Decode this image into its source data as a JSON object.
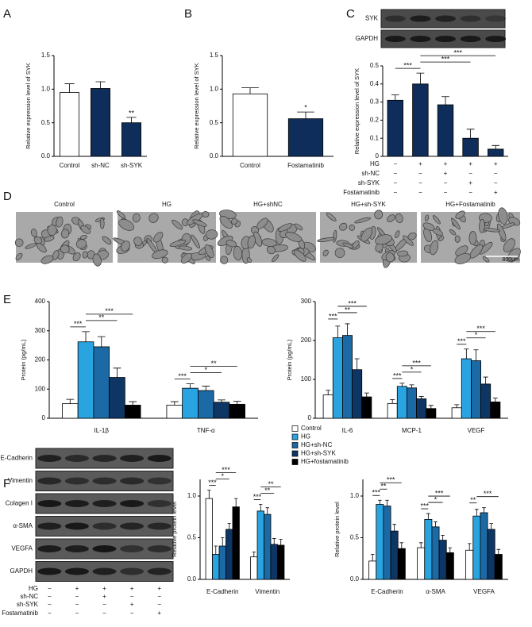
{
  "panels": [
    "A",
    "B",
    "C",
    "D",
    "E",
    "F"
  ],
  "blot_c": {
    "labels": [
      "SYK",
      "GAPDH"
    ]
  },
  "conditions_c": [
    {
      "label": "HG",
      "signs": [
        "−",
        "+",
        "+",
        "+",
        "+"
      ]
    },
    {
      "label": "sh-NC",
      "signs": [
        "−",
        "−",
        "+",
        "−",
        "−"
      ]
    },
    {
      "label": "sh-SYK",
      "signs": [
        "−",
        "−",
        "−",
        "+",
        "−"
      ]
    },
    {
      "label": "Fostamatinib",
      "signs": [
        "−",
        "−",
        "−",
        "−",
        "+"
      ]
    }
  ],
  "micrographs": {
    "labels": [
      "Control",
      "HG",
      "HG+shNC",
      "HG+sh-SYK",
      "HG+Fostamatinib"
    ],
    "scale": "800μm"
  },
  "blot_f": {
    "labels": [
      "E-Cadherin",
      "Vimentin",
      "Colagen I",
      "α-SMA",
      "VEGFA",
      "GAPDH"
    ]
  },
  "conditions_f": [
    {
      "label": "HG",
      "signs": [
        "−",
        "+",
        "+",
        "+",
        "+"
      ]
    },
    {
      "label": "sh-NC",
      "signs": [
        "−",
        "−",
        "+",
        "−",
        "−"
      ]
    },
    {
      "label": "sh-SYK",
      "signs": [
        "−",
        "−",
        "−",
        "+",
        "−"
      ]
    },
    {
      "label": "Fostamatinib",
      "signs": [
        "−",
        "−",
        "−",
        "−",
        "+"
      ]
    }
  ],
  "chart_data": [
    {
      "type": "bar",
      "ylabel": "Relative expression level of SYK",
      "categories": [
        "Control",
        "sh-NC",
        "sh-SYK"
      ],
      "values": [
        0.95,
        1.01,
        0.5
      ],
      "errors": [
        0.13,
        0.1,
        0.08
      ],
      "colors": [
        "#ffffff",
        "#0f2d5a",
        "#0f2d5a"
      ],
      "ylim": [
        0,
        1.5
      ],
      "yticks": [
        {
          "value": 0,
          "label": "0.0"
        },
        0.5,
        {
          "value": 1,
          "label": "1.0"
        },
        1.5
      ],
      "annotations": [
        {
          "bars": [
            2
          ],
          "label": "**"
        }
      ]
    },
    {
      "type": "bar",
      "ylabel": "Relative expression level of SYK",
      "categories": [
        "Control",
        "Fostamatinib"
      ],
      "values": [
        0.93,
        0.56
      ],
      "errors": [
        0.09,
        0.1
      ],
      "colors": [
        "#ffffff",
        "#0f2d5a"
      ],
      "ylim": [
        0,
        1.5
      ],
      "yticks": [
        {
          "value": 0,
          "label": "0.0"
        },
        0.5,
        {
          "value": 1,
          "label": "1.0"
        },
        1.5
      ],
      "annotations": [
        {
          "bars": [
            1
          ],
          "label": "*"
        }
      ]
    },
    {
      "type": "bar",
      "ylabel": "Relative expression level of SYK",
      "categories": [
        null,
        null,
        null,
        null,
        null
      ],
      "values": [
        0.31,
        0.4,
        0.285,
        0.1,
        0.04
      ],
      "errors": [
        0.03,
        0.06,
        0.045,
        0.05,
        0.02
      ],
      "colors": [
        "#0f2d5a",
        "#0f2d5a",
        "#0f2d5a",
        "#0f2d5a",
        "#0f2d5a"
      ],
      "ylim": [
        0,
        0.5
      ],
      "yticks": [
        0,
        0.1,
        0.2,
        0.3,
        0.4,
        0.5
      ],
      "annotations": [
        {
          "bars": [
            0,
            1
          ],
          "label": "***"
        },
        {
          "bars": [
            1,
            3
          ],
          "label": "***"
        },
        {
          "bars": [
            1,
            4
          ],
          "label": "***"
        }
      ]
    },
    {
      "type": "grouped_bar",
      "ylabel": "Protein (pg/mL)",
      "categories": [
        "IL-1β",
        "TNF-α"
      ],
      "series": [
        {
          "name": "Control",
          "color": "#ffffff",
          "values": [
            50,
            45
          ],
          "errors": [
            15,
            12
          ]
        },
        {
          "name": "HG",
          "color": "#2aa4e0",
          "values": [
            262,
            103
          ],
          "errors": [
            35,
            15
          ]
        },
        {
          "name": "HG+sh-NC",
          "color": "#1b6aa5",
          "values": [
            245,
            95
          ],
          "errors": [
            35,
            15
          ]
        },
        {
          "name": "HG+sh-SYK",
          "color": "#0e3665",
          "values": [
            140,
            55
          ],
          "errors": [
            32,
            8
          ]
        },
        {
          "name": "HG+fostamatinib",
          "color": "#000000",
          "values": [
            45,
            48
          ],
          "errors": [
            12,
            10
          ]
        }
      ],
      "ylim": [
        0,
        400
      ],
      "yticks": [
        0,
        100,
        200,
        300,
        400
      ],
      "annotations": [
        [
          {
            "bars": [
              0,
              1
            ],
            "label": "***"
          },
          {
            "bars": [
              1,
              3
            ],
            "label": "**"
          },
          {
            "bars": [
              1,
              4
            ],
            "label": "***"
          }
        ],
        [
          {
            "bars": [
              0,
              1
            ],
            "label": "***"
          },
          {
            "bars": [
              1,
              3
            ],
            "label": "*"
          },
          {
            "bars": [
              1,
              4
            ],
            "label": "**"
          }
        ]
      ],
      "legend": true
    },
    {
      "type": "grouped_bar",
      "ylabel": "Protein (pg/mL)",
      "categories": [
        "IL-6",
        "MCP-1",
        "VEGF"
      ],
      "series": [
        {
          "name": "Control",
          "color": "#ffffff",
          "values": [
            60,
            38,
            27
          ],
          "errors": [
            12,
            10,
            8
          ]
        },
        {
          "name": "HG",
          "color": "#2aa4e0",
          "values": [
            207,
            82,
            153
          ],
          "errors": [
            30,
            8,
            25
          ]
        },
        {
          "name": "HG+sh-NC",
          "color": "#1b6aa5",
          "values": [
            213,
            78,
            148
          ],
          "errors": [
            30,
            8,
            28
          ]
        },
        {
          "name": "HG+sh-SYK",
          "color": "#0e3665",
          "values": [
            125,
            50,
            88
          ],
          "errors": [
            28,
            6,
            18
          ]
        },
        {
          "name": "HG+fostamatinib",
          "color": "#000000",
          "values": [
            55,
            25,
            42
          ],
          "errors": [
            10,
            8,
            10
          ]
        }
      ],
      "ylim": [
        0,
        300
      ],
      "yticks": [
        0,
        100,
        200,
        300
      ],
      "annotations": [
        [
          {
            "bars": [
              0,
              1
            ],
            "label": "***"
          },
          {
            "bars": [
              1,
              3
            ],
            "label": "**"
          },
          {
            "bars": [
              1,
              4
            ],
            "label": "***"
          }
        ],
        [
          {
            "bars": [
              0,
              1
            ],
            "label": "***"
          },
          {
            "bars": [
              1,
              3
            ],
            "label": "*"
          },
          {
            "bars": [
              1,
              4
            ],
            "label": "***"
          }
        ],
        [
          {
            "bars": [
              0,
              1
            ],
            "label": "***"
          },
          {
            "bars": [
              1,
              3
            ],
            "label": "*"
          },
          {
            "bars": [
              1,
              4
            ],
            "label": "***"
          }
        ]
      ]
    },
    {
      "type": "grouped_bar",
      "ylabel": "Relative protein level",
      "categories": [
        "E-Cadherin",
        "Vimentin"
      ],
      "series": [
        {
          "name": "Control",
          "color": "#ffffff",
          "values": [
            0.97,
            0.27
          ],
          "errors": [
            0.1,
            0.06
          ]
        },
        {
          "name": "HG",
          "color": "#2aa4e0",
          "values": [
            0.3,
            0.82
          ],
          "errors": [
            0.1,
            0.08
          ]
        },
        {
          "name": "HG+sh-NC",
          "color": "#1b6aa5",
          "values": [
            0.4,
            0.78
          ],
          "errors": [
            0.1,
            0.08
          ]
        },
        {
          "name": "HG+sh-SYK",
          "color": "#0e3665",
          "values": [
            0.6,
            0.42
          ],
          "errors": [
            0.07,
            0.07
          ]
        },
        {
          "name": "HG+fostamatinib",
          "color": "#000000",
          "values": [
            0.87,
            0.41
          ],
          "errors": [
            0.1,
            0.07
          ]
        }
      ],
      "ylim": [
        0,
        1.2
      ],
      "yticks": [
        {
          "value": 0,
          "label": "0.0"
        },
        0.5,
        {
          "value": 1,
          "label": "1.0"
        }
      ],
      "annotations": [
        [
          {
            "bars": [
              0,
              1
            ],
            "label": "***"
          },
          {
            "bars": [
              1,
              3
            ],
            "label": "*"
          },
          {
            "bars": [
              1,
              4
            ],
            "label": "***"
          }
        ],
        [
          {
            "bars": [
              0,
              1
            ],
            "label": "***"
          },
          {
            "bars": [
              1,
              3
            ],
            "label": "**"
          },
          {
            "bars": [
              1,
              4
            ],
            "label": "**"
          }
        ]
      ]
    },
    {
      "type": "grouped_bar",
      "ylabel": "Relative protein level",
      "categories": [
        "E-Cadherin",
        "α-SMA",
        "VEGFA"
      ],
      "series": [
        {
          "name": "Control",
          "color": "#ffffff",
          "values": [
            0.22,
            0.38,
            0.35
          ],
          "errors": [
            0.08,
            0.06,
            0.08
          ]
        },
        {
          "name": "HG",
          "color": "#2aa4e0",
          "values": [
            0.9,
            0.72,
            0.76
          ],
          "errors": [
            0.05,
            0.07,
            0.08
          ]
        },
        {
          "name": "HG+sh-NC",
          "color": "#1b6aa5",
          "values": [
            0.88,
            0.63,
            0.8
          ],
          "errors": [
            0.07,
            0.06,
            0.06
          ]
        },
        {
          "name": "HG+sh-SYK",
          "color": "#0e3665",
          "values": [
            0.58,
            0.47,
            0.6
          ],
          "errors": [
            0.08,
            0.06,
            0.07
          ]
        },
        {
          "name": "HG+fostamatinib",
          "color": "#000000",
          "values": [
            0.37,
            0.32,
            0.3
          ],
          "errors": [
            0.07,
            0.06,
            0.06
          ]
        }
      ],
      "ylim": [
        0,
        1.2
      ],
      "yticks": [
        {
          "value": 0,
          "label": "0.0"
        },
        0.5,
        {
          "value": 1,
          "label": "1.0"
        }
      ],
      "annotations": [
        [
          {
            "bars": [
              0,
              1
            ],
            "label": "***"
          },
          {
            "bars": [
              1,
              2
            ],
            "label": "**"
          },
          {
            "bars": [
              1,
              4
            ],
            "label": "***"
          }
        ],
        [
          {
            "bars": [
              0,
              1
            ],
            "label": "***"
          },
          {
            "bars": [
              1,
              3
            ],
            "label": "*"
          },
          {
            "bars": [
              1,
              4
            ],
            "label": "***"
          }
        ],
        [
          {
            "bars": [
              0,
              1
            ],
            "label": "**"
          },
          {
            "bars": [
              1,
              4
            ],
            "label": "***"
          }
        ]
      ]
    }
  ]
}
